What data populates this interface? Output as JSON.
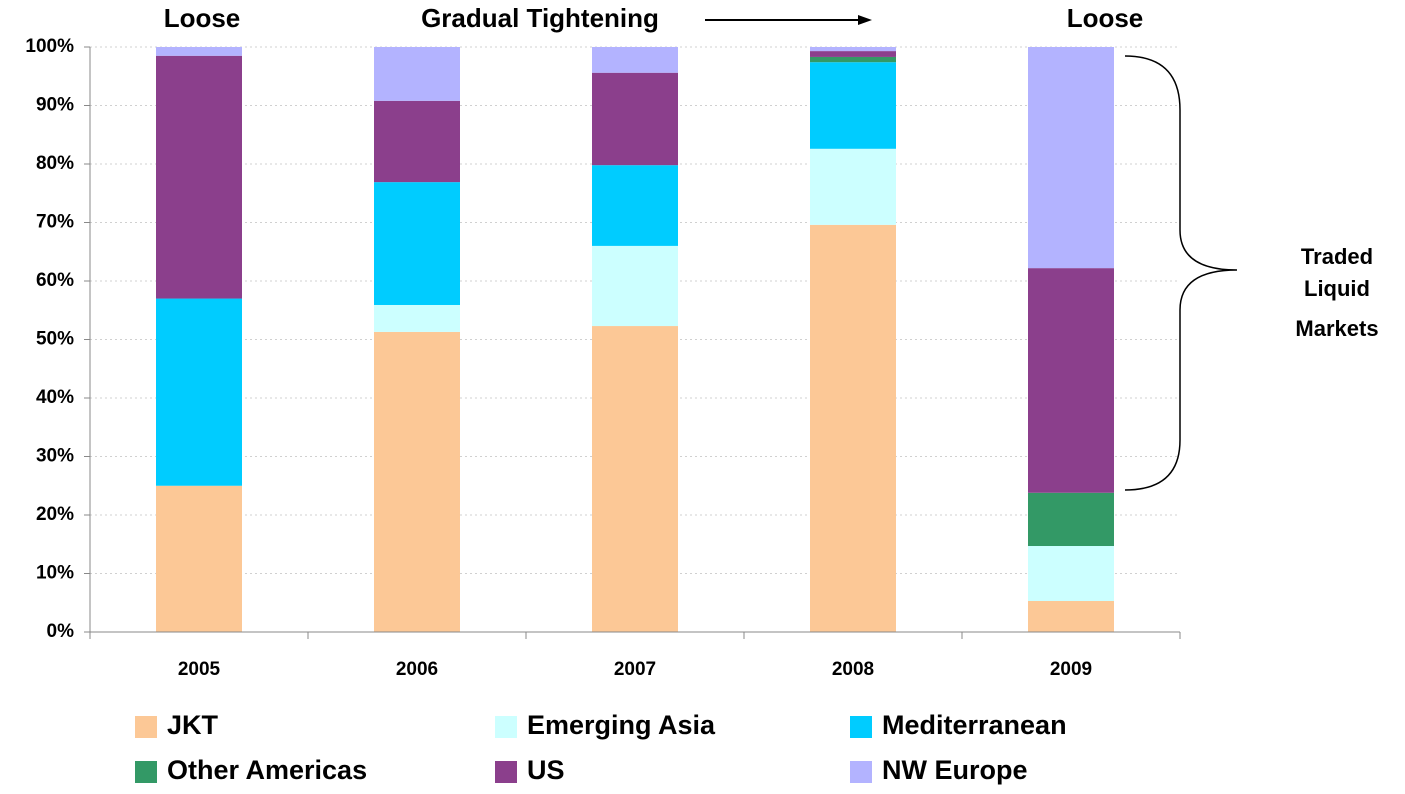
{
  "chart_data": {
    "type": "stacked_bar",
    "categories": [
      "2005",
      "2006",
      "2007",
      "2008",
      "2009"
    ],
    "series": [
      {
        "name": "JKT",
        "color": "#fcc896",
        "values": [
          25,
          51.3,
          52.3,
          69.6,
          5.3
        ]
      },
      {
        "name": "Emerging Asia",
        "color": "#ccffff",
        "values": [
          0,
          4.6,
          13.7,
          13,
          9.4
        ]
      },
      {
        "name": "Mediterranean",
        "color": "#00ccff",
        "values": [
          32,
          21,
          13.8,
          14.8,
          0
        ]
      },
      {
        "name": "Other Americas",
        "color": "#339966",
        "values": [
          0,
          0,
          0,
          0.9,
          9.1
        ]
      },
      {
        "name": "US",
        "color": "#8b3f8c",
        "values": [
          41.5,
          13.9,
          15.8,
          1,
          38.4
        ]
      },
      {
        "name": "NW Europe",
        "color": "#b3b3ff",
        "values": [
          1.5,
          9.2,
          4.4,
          0.7,
          37.8
        ]
      }
    ],
    "ylim": [
      0,
      100
    ],
    "yticks": [
      {
        "value": 0,
        "label": "0%"
      },
      {
        "value": 10,
        "label": "10%"
      },
      {
        "value": 20,
        "label": "20%"
      },
      {
        "value": 30,
        "label": "30%"
      },
      {
        "value": 40,
        "label": "40%"
      },
      {
        "value": 50,
        "label": "50%"
      },
      {
        "value": 60,
        "label": "60%"
      },
      {
        "value": 70,
        "label": "70%"
      },
      {
        "value": 80,
        "label": "80%"
      },
      {
        "value": 90,
        "label": "90%"
      },
      {
        "value": 100,
        "label": "100%"
      }
    ],
    "grid": true,
    "annotations": [
      "Loose",
      "Gradual Tightening",
      "Loose"
    ],
    "bracket_label": [
      "Traded",
      "Liquid",
      "Markets"
    ]
  }
}
